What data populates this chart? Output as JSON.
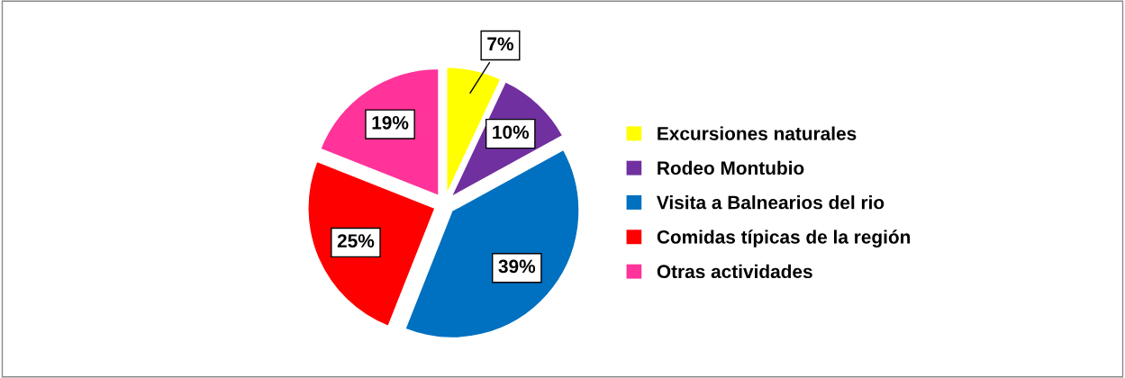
{
  "chart_data": {
    "type": "pie",
    "categories": [
      "Excursiones naturales",
      "Rodeo Montubio",
      "Visita a Balnearios del rio",
      "Comidas típicas de la región",
      "Otras actividades"
    ],
    "values": [
      7,
      10,
      39,
      25,
      19
    ],
    "colors": [
      "#ffff00",
      "#7030a0",
      "#0070c0",
      "#ff0000",
      "#ff3399"
    ],
    "value_labels": [
      "7%",
      "10%",
      "39%",
      "25%",
      "19%"
    ],
    "legend": "right"
  }
}
